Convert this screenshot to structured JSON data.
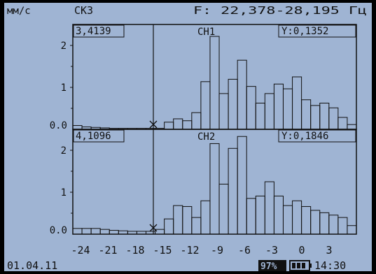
{
  "header": {
    "unit": "мм/с",
    "sensor": "СК3",
    "frequency": "F: 22,378-28,195 Гц"
  },
  "channels": [
    {
      "name": "CH1",
      "cursor_x": "3,4139",
      "cursor_y": "Y:0,1352",
      "yticks": [
        "2",
        "1",
        "0.0"
      ]
    },
    {
      "name": "CH2",
      "cursor_x": "4,1096",
      "cursor_y": "Y:0,1846",
      "yticks": [
        "2",
        "1",
        "0.0"
      ]
    }
  ],
  "xaxis": {
    "ticks": [
      "-24",
      "-21",
      "-18",
      "-15",
      "-12",
      "-9",
      "-6",
      "-3",
      "0",
      "3"
    ]
  },
  "footer": {
    "date": "01.04.11",
    "battery_percent": "97%",
    "battery_icon": "battery-icon",
    "time": "14:30"
  },
  "colors": {
    "background": "#9fb4d3",
    "foreground": "#111111"
  },
  "chart_data": [
    {
      "type": "bar",
      "title": "CH1",
      "ylim": [
        0,
        2.2
      ],
      "x_range": [
        -25.5,
        5.5
      ],
      "bin_width": 1,
      "values": [
        0.08,
        0.05,
        0.04,
        0.03,
        0.02,
        0.02,
        0.02,
        0.02,
        0.02,
        0.02,
        0.15,
        0.22,
        0.18,
        0.35,
        1.0,
        1.95,
        0.75,
        1.05,
        1.45,
        0.9,
        0.55,
        0.75,
        0.95,
        0.85,
        1.1,
        0.62,
        0.5,
        0.55,
        0.45,
        0.25,
        0.1
      ]
    },
    {
      "type": "bar",
      "title": "CH2",
      "ylim": [
        0,
        2.2
      ],
      "x_range": [
        -25.5,
        5.5
      ],
      "bin_width": 1,
      "values": [
        0.12,
        0.12,
        0.12,
        0.1,
        0.08,
        0.07,
        0.06,
        0.06,
        0.06,
        0.1,
        0.32,
        0.6,
        0.58,
        0.35,
        0.7,
        1.9,
        1.05,
        1.8,
        2.05,
        0.75,
        0.8,
        1.1,
        0.8,
        0.6,
        0.7,
        0.58,
        0.5,
        0.45,
        0.4,
        0.35,
        0.18
      ]
    }
  ]
}
